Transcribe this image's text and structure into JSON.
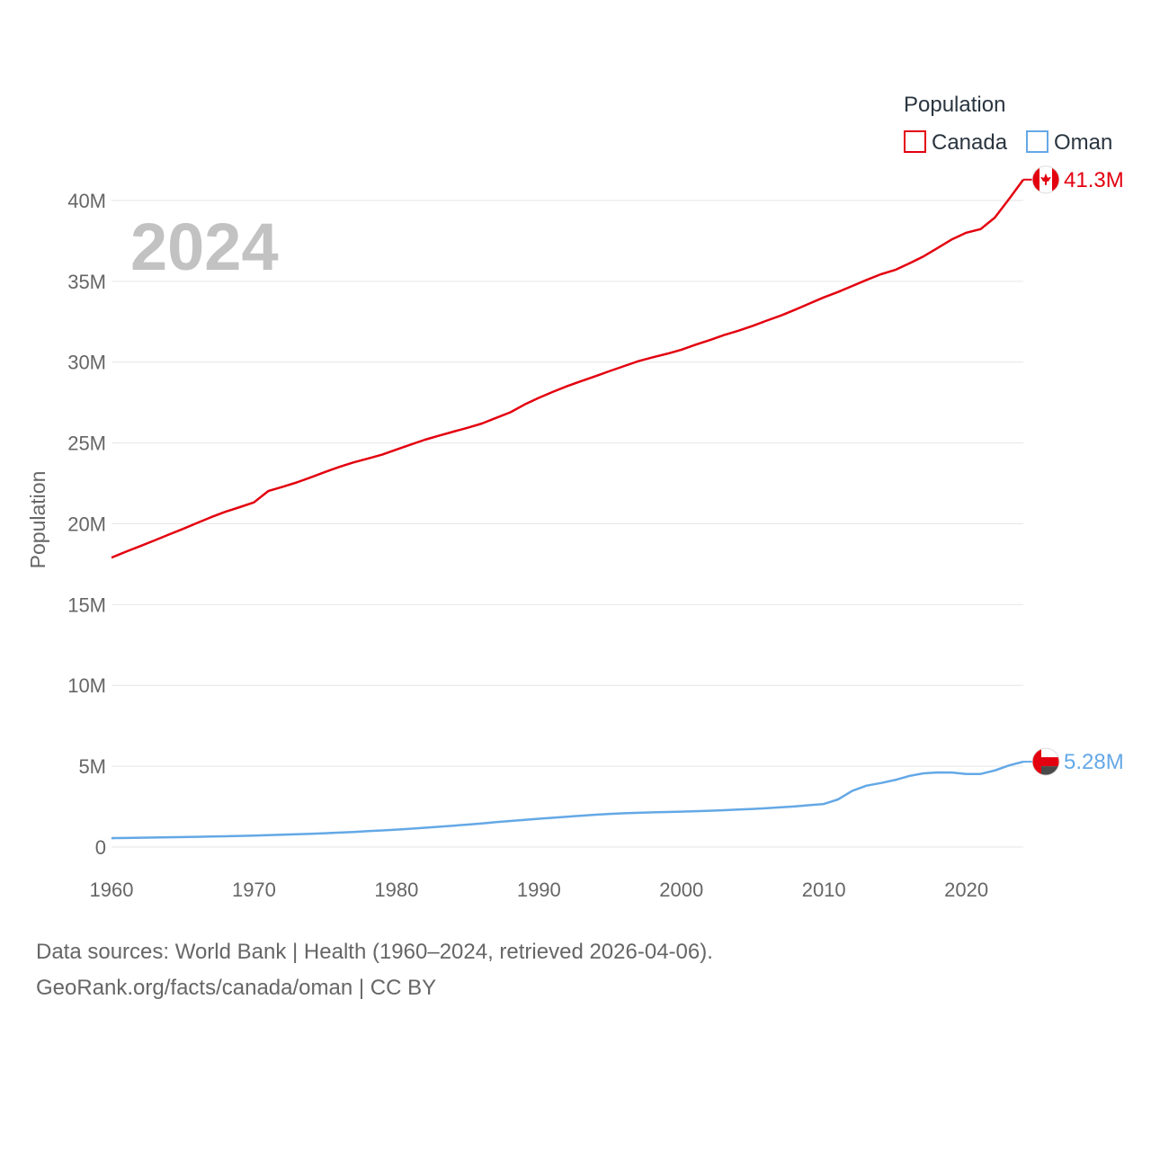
{
  "chart_data": {
    "type": "line",
    "title": "",
    "year_label": "2024",
    "ylabel": "Population",
    "xlabel": "",
    "xlim": [
      1960,
      2024
    ],
    "ylim": [
      0,
      42000000
    ],
    "x_ticks": [
      1960,
      1970,
      1980,
      1990,
      2000,
      2010,
      2020
    ],
    "x_tick_labels": [
      "1960",
      "1970",
      "1980",
      "1990",
      "2000",
      "2010",
      "2020"
    ],
    "y_ticks": [
      0,
      5000000,
      10000000,
      15000000,
      20000000,
      25000000,
      30000000,
      35000000,
      40000000
    ],
    "y_tick_labels": [
      "0",
      "5M",
      "10M",
      "15M",
      "20M",
      "25M",
      "30M",
      "35M",
      "40M"
    ],
    "grid": true,
    "legend": {
      "title": "Population",
      "position": "top-right"
    },
    "x": [
      1960,
      1961,
      1962,
      1963,
      1964,
      1965,
      1966,
      1967,
      1968,
      1969,
      1970,
      1971,
      1972,
      1973,
      1974,
      1975,
      1976,
      1977,
      1978,
      1979,
      1980,
      1981,
      1982,
      1983,
      1984,
      1985,
      1986,
      1987,
      1988,
      1989,
      1990,
      1991,
      1992,
      1993,
      1994,
      1995,
      1996,
      1997,
      1998,
      1999,
      2000,
      2001,
      2002,
      2003,
      2004,
      2005,
      2006,
      2007,
      2008,
      2009,
      2010,
      2011,
      2012,
      2013,
      2014,
      2015,
      2016,
      2017,
      2018,
      2019,
      2020,
      2021,
      2022,
      2023,
      2024
    ],
    "series": [
      {
        "name": "Canada",
        "color": "#e3000f",
        "end_label": "41.3M",
        "flag": "canada-flag",
        "values": [
          17909000,
          18271000,
          18614000,
          18964000,
          19325000,
          19678000,
          20048000,
          20412000,
          20744000,
          21028000,
          21324000,
          22026000,
          22285000,
          22560000,
          22875000,
          23209000,
          23518000,
          23796000,
          24036000,
          24277000,
          24593000,
          24900000,
          25202000,
          25456000,
          25702000,
          25942000,
          26204000,
          26550000,
          26895000,
          27379000,
          27791000,
          28171000,
          28519000,
          28833000,
          29140000,
          29454000,
          29763000,
          30063000,
          30300000,
          30518000,
          30769000,
          31081000,
          31362000,
          31676000,
          31940000,
          32244000,
          32571000,
          32889000,
          33247000,
          33629000,
          34005000,
          34339000,
          34714000,
          35083000,
          35438000,
          35705000,
          36110000,
          36545000,
          37066000,
          37602000,
          38008000,
          38226000,
          38940000,
          40098000,
          41290000
        ]
      },
      {
        "name": "Oman",
        "color": "#64a8e6",
        "end_label": "5.28M",
        "flag": "oman-flag",
        "values": [
          552000,
          563000,
          576000,
          590000,
          604000,
          619000,
          634000,
          651000,
          669000,
          689000,
          711000,
          735000,
          762000,
          791000,
          823000,
          858000,
          896000,
          937000,
          982000,
          1029000,
          1081000,
          1136000,
          1195000,
          1257000,
          1323000,
          1392000,
          1464000,
          1539000,
          1612000,
          1682000,
          1750000,
          1816000,
          1880000,
          1942000,
          2000000,
          2050000,
          2089000,
          2121000,
          2147000,
          2168000,
          2192000,
          2220000,
          2250000,
          2282000,
          2318000,
          2360000,
          2410000,
          2462000,
          2522000,
          2590000,
          2665000,
          2950000,
          3480000,
          3800000,
          3960000,
          4150000,
          4400000,
          4560000,
          4620000,
          4610000,
          4520000,
          4520000,
          4740000,
          5050000,
          5280000
        ]
      }
    ]
  },
  "footer": {
    "line1": "Data sources: World Bank | Health (1960–2024, retrieved 2026-04-06).",
    "line2": "GeoRank.org/facts/canada/oman | CC BY"
  }
}
